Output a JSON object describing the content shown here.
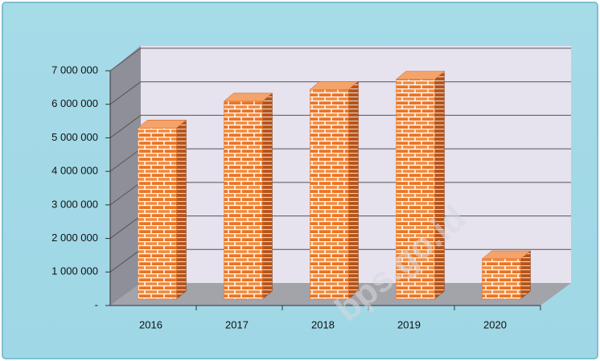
{
  "chart_data": {
    "type": "bar3d",
    "categories": [
      "2016",
      "2017",
      "2018",
      "2019",
      "2020"
    ],
    "values": [
      5100000,
      5900000,
      6250000,
      6550000,
      1200000
    ],
    "color": "#e8701e",
    "ylim": [
      0,
      7000000
    ],
    "yticks": [
      {
        "value": 0,
        "label": "-"
      },
      {
        "value": 1000000,
        "label": "1 000 000"
      },
      {
        "value": 2000000,
        "label": "2 000 000"
      },
      {
        "value": 3000000,
        "label": "3 000 000"
      },
      {
        "value": 4000000,
        "label": "4 000 000"
      },
      {
        "value": 5000000,
        "label": "5 000 000"
      },
      {
        "value": 6000000,
        "label": "6 000 000"
      },
      {
        "value": 7000000,
        "label": "7 000 000"
      }
    ],
    "grid": true,
    "watermark": "bps.go.id"
  }
}
